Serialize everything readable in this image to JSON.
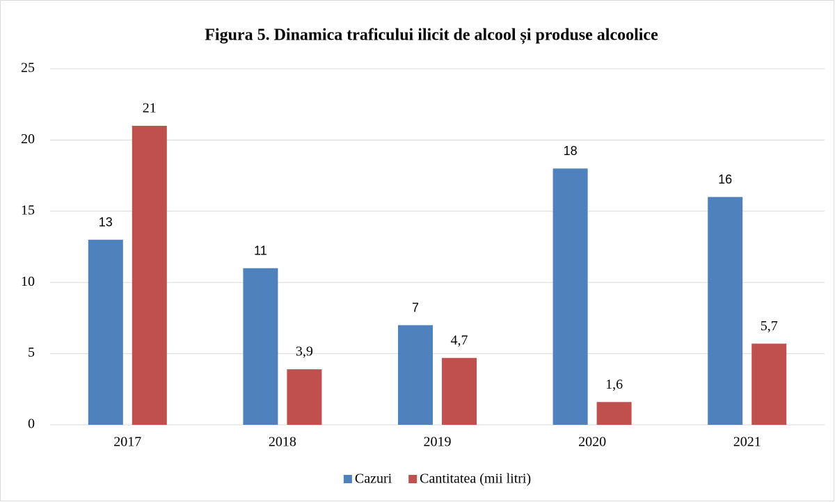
{
  "chart_data": {
    "type": "bar",
    "title": "Figura 5. Dinamica traficului ilicit de alcool și produse alcoolice",
    "categories": [
      "2017",
      "2018",
      "2019",
      "2020",
      "2021"
    ],
    "series": [
      {
        "name": "Cazuri",
        "color": "#4f81bd",
        "values": [
          13,
          11,
          7,
          18,
          16
        ]
      },
      {
        "name": "Cantitatea (mii litri)",
        "color": "#c0504d",
        "values": [
          21,
          3.9,
          4.7,
          1.6,
          5.7
        ],
        "value_labels": [
          "21",
          "3,9",
          "4,7",
          "1,6",
          "5,7"
        ]
      }
    ],
    "ylim": [
      0,
      25
    ],
    "yticks": [
      0,
      5,
      10,
      15,
      20,
      25
    ],
    "grid": true,
    "legend": "bottom"
  }
}
